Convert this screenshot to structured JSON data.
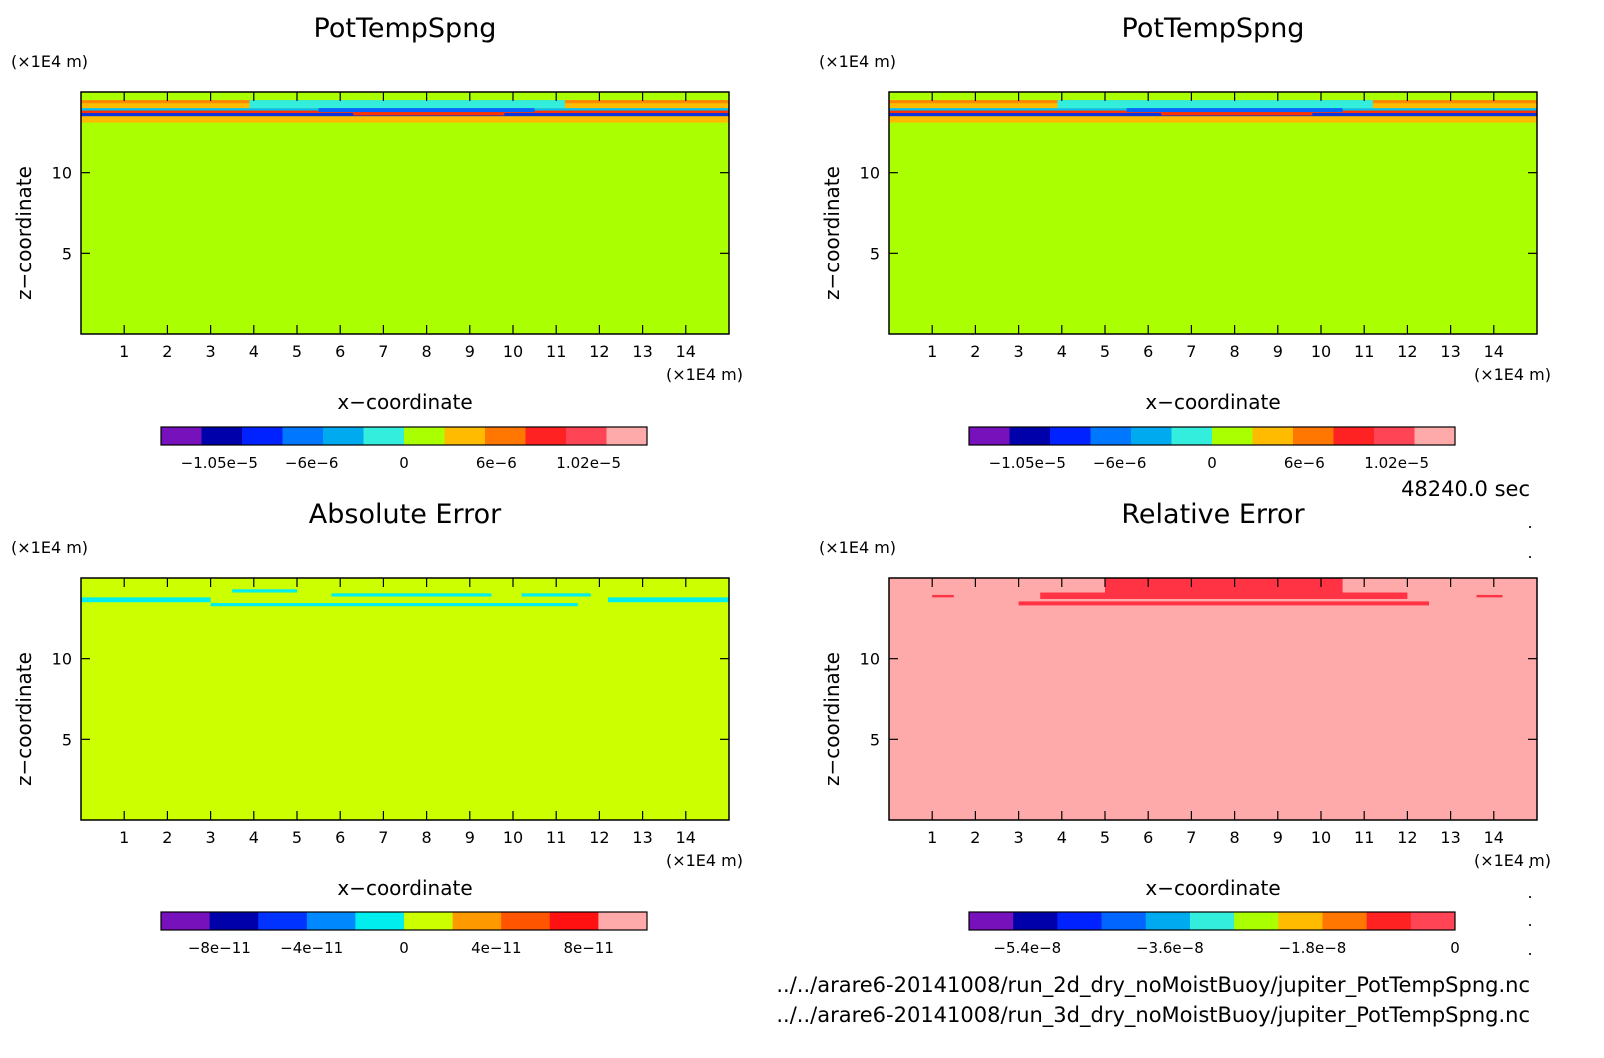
{
  "time_label": "48240.0 sec",
  "files": [
    "../../arare6-20141008/run_2d_dry_noMoistBuoy/jupiter_PotTempSpng.nc",
    "../../arare6-20141008/run_3d_dry_noMoistBuoy/jupiter_PotTempSpng.nc"
  ],
  "chart_data": [
    {
      "type": "heatmap",
      "title": "PotTempSpng",
      "xlabel": "x−coordinate",
      "ylabel": "z−coordinate",
      "x_unit": "(×1E4 m)",
      "y_unit": "(×1E4 m)",
      "xlim": [
        0,
        15
      ],
      "ylim": [
        0,
        15
      ],
      "x_ticks": [
        1,
        2,
        3,
        4,
        5,
        6,
        7,
        8,
        9,
        10,
        11,
        12,
        13,
        14
      ],
      "y_ticks": [
        5,
        10
      ],
      "background_color": "#aaff00",
      "field": [
        {
          "x0": 0,
          "x1": 15,
          "z0": 13.1,
          "z1": 13.5,
          "color": "#ffbb00"
        },
        {
          "x0": 0,
          "x1": 15,
          "z0": 13.5,
          "z1": 13.7,
          "color": "#1133dd"
        },
        {
          "x0": 0,
          "x1": 15,
          "z0": 13.7,
          "z1": 13.85,
          "color": "#ff3300"
        },
        {
          "x0": 0,
          "x1": 15,
          "z0": 13.85,
          "z1": 14.0,
          "color": "#00bbff"
        },
        {
          "x0": 0,
          "x1": 15,
          "z0": 14.0,
          "z1": 14.3,
          "color": "#ffbb00"
        },
        {
          "x0": 0,
          "x1": 15,
          "z0": 14.3,
          "z1": 14.5,
          "color": "#ff8800"
        },
        {
          "x0": 3.9,
          "x1": 11.2,
          "z0": 14.0,
          "z1": 14.5,
          "color": "#33eedd"
        },
        {
          "x0": 5.5,
          "x1": 10.5,
          "z0": 13.75,
          "z1": 14.0,
          "color": "#0066ff"
        },
        {
          "x0": 6.3,
          "x1": 9.8,
          "z0": 13.55,
          "z1": 13.75,
          "color": "#ff3300"
        }
      ],
      "colorbar": {
        "ticks": [
          "−1.05e−5",
          "−6e−6",
          "0",
          "6e−6",
          "1.02e−5"
        ],
        "colors": [
          "#7711bb",
          "#0000aa",
          "#0022ff",
          "#0077ff",
          "#00aaee",
          "#33eedd",
          "#aaff00",
          "#ffbb00",
          "#ff7700",
          "#ff2222",
          "#ff4455",
          "#ffaaaa"
        ]
      }
    },
    {
      "type": "heatmap",
      "title": "PotTempSpng",
      "xlabel": "x−coordinate",
      "ylabel": "z−coordinate",
      "x_unit": "(×1E4 m)",
      "y_unit": "(×1E4 m)",
      "xlim": [
        0,
        15
      ],
      "ylim": [
        0,
        15
      ],
      "x_ticks": [
        1,
        2,
        3,
        4,
        5,
        6,
        7,
        8,
        9,
        10,
        11,
        12,
        13,
        14
      ],
      "y_ticks": [
        5,
        10
      ],
      "background_color": "#aaff00",
      "field": [
        {
          "x0": 0,
          "x1": 15,
          "z0": 13.1,
          "z1": 13.5,
          "color": "#ffbb00"
        },
        {
          "x0": 0,
          "x1": 15,
          "z0": 13.5,
          "z1": 13.7,
          "color": "#1133dd"
        },
        {
          "x0": 0,
          "x1": 15,
          "z0": 13.7,
          "z1": 13.85,
          "color": "#ff3300"
        },
        {
          "x0": 0,
          "x1": 15,
          "z0": 13.85,
          "z1": 14.0,
          "color": "#00bbff"
        },
        {
          "x0": 0,
          "x1": 15,
          "z0": 14.0,
          "z1": 14.3,
          "color": "#ffbb00"
        },
        {
          "x0": 0,
          "x1": 15,
          "z0": 14.3,
          "z1": 14.5,
          "color": "#ff8800"
        },
        {
          "x0": 3.9,
          "x1": 11.2,
          "z0": 14.0,
          "z1": 14.5,
          "color": "#33eedd"
        },
        {
          "x0": 5.5,
          "x1": 10.5,
          "z0": 13.75,
          "z1": 14.0,
          "color": "#0066ff"
        },
        {
          "x0": 6.3,
          "x1": 9.8,
          "z0": 13.55,
          "z1": 13.75,
          "color": "#ff3300"
        }
      ],
      "colorbar": {
        "ticks": [
          "−1.05e−5",
          "−6e−6",
          "0",
          "6e−6",
          "1.02e−5"
        ],
        "colors": [
          "#7711bb",
          "#0000aa",
          "#0022ff",
          "#0077ff",
          "#00aaee",
          "#33eedd",
          "#aaff00",
          "#ffbb00",
          "#ff7700",
          "#ff2222",
          "#ff4455",
          "#ffaaaa"
        ]
      }
    },
    {
      "type": "heatmap",
      "title": "Absolute Error",
      "xlabel": "x−coordinate",
      "ylabel": "z−coordinate",
      "x_unit": "(×1E4 m)",
      "y_unit": "(×1E4 m)",
      "xlim": [
        0,
        15
      ],
      "ylim": [
        0,
        15
      ],
      "x_ticks": [
        1,
        2,
        3,
        4,
        5,
        6,
        7,
        8,
        9,
        10,
        11,
        12,
        13,
        14
      ],
      "y_ticks": [
        5,
        10
      ],
      "background_color": "#ccff00",
      "field": [
        {
          "x0": 0,
          "x1": 3.0,
          "z0": 13.5,
          "z1": 13.8,
          "color": "#00eeee"
        },
        {
          "x0": 12.2,
          "x1": 15,
          "z0": 13.5,
          "z1": 13.8,
          "color": "#00eeee"
        },
        {
          "x0": 3.0,
          "x1": 11.5,
          "z0": 13.25,
          "z1": 13.45,
          "color": "#00eeee"
        },
        {
          "x0": 5.8,
          "x1": 9.5,
          "z0": 13.85,
          "z1": 14.05,
          "color": "#00eeee"
        },
        {
          "x0": 3.5,
          "x1": 5.0,
          "z0": 14.1,
          "z1": 14.3,
          "color": "#00eeee"
        },
        {
          "x0": 10.2,
          "x1": 11.8,
          "z0": 13.85,
          "z1": 14.05,
          "color": "#00eeee"
        }
      ],
      "colorbar": {
        "ticks": [
          "−8e−11",
          "−4e−11",
          "0",
          "4e−11",
          "8e−11"
        ],
        "colors": [
          "#7711bb",
          "#0000aa",
          "#0033ff",
          "#0088ff",
          "#00eeee",
          "#ccff00",
          "#ff9900",
          "#ff5500",
          "#ff1111",
          "#ffaaaa"
        ]
      }
    },
    {
      "type": "heatmap",
      "title": "Relative Error",
      "xlabel": "x−coordinate",
      "ylabel": "z−coordinate",
      "x_unit": "(×1E4 m)",
      "y_unit": "(×1E4 m)",
      "xlim": [
        0,
        15
      ],
      "ylim": [
        0,
        15
      ],
      "x_ticks": [
        1,
        2,
        3,
        4,
        5,
        6,
        7,
        8,
        9,
        10,
        11,
        12,
        13,
        14
      ],
      "y_ticks": [
        5,
        10
      ],
      "background_color": "#ffaaaa",
      "field": [
        {
          "x0": 5.0,
          "x1": 10.5,
          "z0": 14.0,
          "z1": 15.0,
          "color": "#ff3344"
        },
        {
          "x0": 3.5,
          "x1": 12.0,
          "z0": 13.7,
          "z1": 14.1,
          "color": "#ff3344"
        },
        {
          "x0": 3.0,
          "x1": 12.5,
          "z0": 13.3,
          "z1": 13.55,
          "color": "#ff3344"
        },
        {
          "x0": 1.0,
          "x1": 1.5,
          "z0": 13.8,
          "z1": 13.95,
          "color": "#ff3344"
        },
        {
          "x0": 13.6,
          "x1": 14.2,
          "z0": 13.8,
          "z1": 13.95,
          "color": "#ff3344"
        }
      ],
      "colorbar": {
        "ticks": [
          "−5.4e−8",
          "−3.6e−8",
          "−1.8e−8",
          "0"
        ],
        "colors": [
          "#7711bb",
          "#0000aa",
          "#0022ff",
          "#0066ff",
          "#00aaee",
          "#33eedd",
          "#aaff00",
          "#ffbb00",
          "#ff7700",
          "#ff2222",
          "#ff4455"
        ]
      }
    }
  ]
}
